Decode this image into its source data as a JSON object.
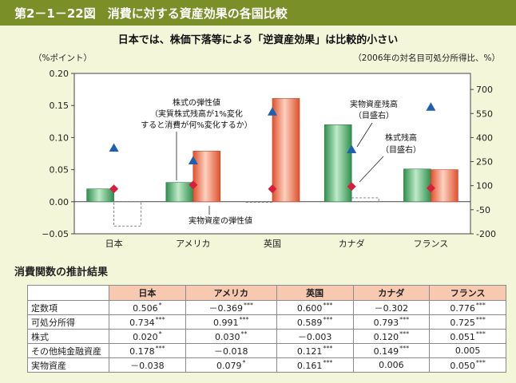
{
  "header": {
    "title": "第2－1－22図　消費に対する資産効果の各国比較"
  },
  "chart_data": {
    "type": "bar",
    "title": "日本では、株価下落等による「逆資産効果」は比較的小さい",
    "ylabel_left": "（%ポイント）",
    "ylabel_right": "（2006年の対名目可処分所得比、%）",
    "categories": [
      "日本",
      "アメリカ",
      "英国",
      "カナダ",
      "フランス"
    ],
    "ylim_left": [
      -0.05,
      0.2
    ],
    "yticks_left": [
      "0.20",
      "0.15",
      "0.10",
      "0.05",
      "0.00",
      "−0.05"
    ],
    "ylim_right": [
      -200,
      800
    ],
    "yticks_right": [
      "700",
      "550",
      "400",
      "250",
      "100",
      "-50",
      "-200"
    ],
    "series": [
      {
        "name": "株式の弾性値",
        "color": "#3aa85c",
        "values": [
          0.02,
          0.03,
          0.0,
          0.12,
          0.051
        ],
        "significant": [
          true,
          true,
          false,
          true,
          true
        ]
      },
      {
        "name": "実物資産の弾性値",
        "color": "#ee6a4a",
        "values": [
          -0.038,
          0.079,
          0.161,
          0.006,
          0.05
        ],
        "significant": [
          false,
          true,
          true,
          false,
          true
        ]
      },
      {
        "name": "実物資産残高",
        "axis": "right",
        "marker": "triangle",
        "color": "#1f5fb0",
        "values": [
          335,
          255,
          560,
          325,
          590
        ]
      },
      {
        "name": "株式残高",
        "axis": "right",
        "marker": "diamond",
        "color": "#d81e3c",
        "values": [
          80,
          105,
          80,
          95,
          85
        ]
      }
    ],
    "annotations": [
      "株式の弾性値",
      "（実質株式残高が1%変化",
      "すると消費が何%変化するか）",
      "実物資産の弾性値",
      "実物資産残高",
      "（目盛右）",
      "株式残高",
      "（目盛右）"
    ]
  },
  "table": {
    "title": "消費関数の推計結果",
    "headers": [
      "",
      "日本",
      "アメリカ",
      "英国",
      "カナダ",
      "フランス"
    ],
    "rows": [
      {
        "label": "定数項",
        "cells": [
          [
            "0.506",
            "*"
          ],
          [
            "－0.369",
            "***"
          ],
          [
            "0.600",
            "***"
          ],
          [
            "－0.302",
            ""
          ],
          [
            "0.776",
            "***"
          ]
        ]
      },
      {
        "label": "可処分所得",
        "cells": [
          [
            "0.734",
            "***"
          ],
          [
            "0.991",
            "***"
          ],
          [
            "0.589",
            "***"
          ],
          [
            "0.793",
            "***"
          ],
          [
            "0.725",
            "***"
          ]
        ]
      },
      {
        "label": "株式",
        "cells": [
          [
            "0.020",
            "*"
          ],
          [
            "0.030",
            "**"
          ],
          [
            "－0.003",
            ""
          ],
          [
            "0.120",
            "***"
          ],
          [
            "0.051",
            "***"
          ]
        ]
      },
      {
        "label": "その他純金融資産",
        "cells": [
          [
            "0.178",
            "***"
          ],
          [
            "－0.018",
            ""
          ],
          [
            "0.121",
            "***"
          ],
          [
            "0.149",
            "***"
          ],
          [
            "0.005",
            ""
          ]
        ]
      },
      {
        "label": "実物資産",
        "cells": [
          [
            "－0.038",
            ""
          ],
          [
            "0.079",
            "*"
          ],
          [
            "0.161",
            "***"
          ],
          [
            "0.006",
            ""
          ],
          [
            "0.050",
            "***"
          ]
        ]
      }
    ]
  }
}
